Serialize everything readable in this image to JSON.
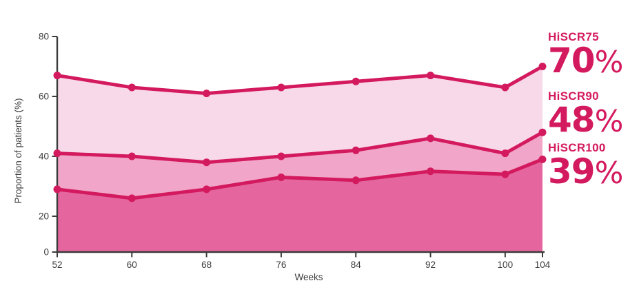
{
  "figure": {
    "background": "#ffffff"
  },
  "annotations": [
    {
      "label": "HiSCR75",
      "value": "70",
      "unit": "%"
    },
    {
      "label": "HiSCR90",
      "value": "48",
      "unit": "%"
    },
    {
      "label": "HiSCR100",
      "value": "39",
      "unit": "%"
    }
  ],
  "chart_data": {
    "type": "area",
    "x": [
      52,
      60,
      68,
      76,
      84,
      92,
      100,
      104
    ],
    "xticks": [
      52,
      60,
      68,
      76,
      84,
      92,
      100,
      104
    ],
    "xlabel": "Weeks",
    "ylabel": "Proportion of patients (%)",
    "ylim": [
      0,
      80
    ],
    "yticks": [
      0,
      20,
      40,
      60,
      80
    ],
    "grid": false,
    "legend_position": "right-side annotations",
    "series": [
      {
        "name": "HiSCR75",
        "values": [
          67,
          63,
          61,
          63,
          65,
          67,
          63,
          70
        ],
        "end_label": "70%",
        "fill": "#f8d9e9"
      },
      {
        "name": "HiSCR90",
        "values": [
          41,
          40,
          38,
          40,
          42,
          46,
          41,
          48
        ],
        "end_label": "48%",
        "fill": "#f1a5c8"
      },
      {
        "name": "HiSCR100",
        "values": [
          29,
          26,
          29,
          33,
          32,
          35,
          34,
          39
        ],
        "end_label": "39%",
        "fill": "#e5669f"
      }
    ],
    "colors": {
      "line": "#d41a5e",
      "marker": "#d41a5e",
      "annotation_text": "#d41a5e",
      "axis": "#3b3b3b",
      "tick_text": "#3b3b3b",
      "fills": [
        "#f8d9e9",
        "#f1a5c8",
        "#e5669f"
      ]
    }
  }
}
